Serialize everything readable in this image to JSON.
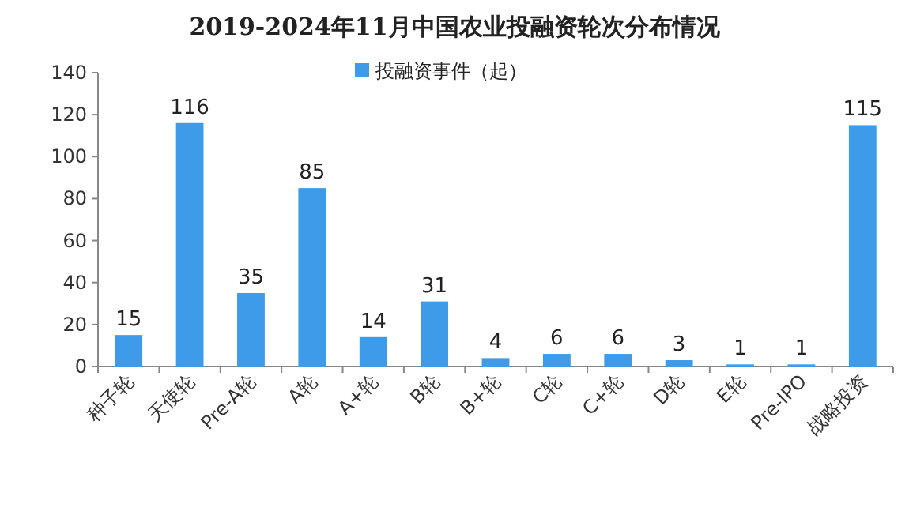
{
  "chart_data": {
    "type": "bar",
    "title": "2019-2024年11月中国农业投融资轮次分布情况",
    "categories": [
      "种子轮",
      "天使轮",
      "Pre-A轮",
      "A轮",
      "A+轮",
      "B轮",
      "B+轮",
      "C轮",
      "C+轮",
      "D轮",
      "E轮",
      "Pre-IPO",
      "战略投资"
    ],
    "series": [
      {
        "name": "投融资事件（起）",
        "color": "#3d9be9",
        "values": [
          15,
          116,
          35,
          85,
          14,
          31,
          4,
          6,
          6,
          3,
          1,
          1,
          115
        ]
      }
    ],
    "ylim": [
      0,
      140
    ],
    "yticks": [
      0,
      20,
      40,
      60,
      80,
      100,
      120,
      140
    ],
    "data_labels": true,
    "legend": "top",
    "grid": false
  }
}
